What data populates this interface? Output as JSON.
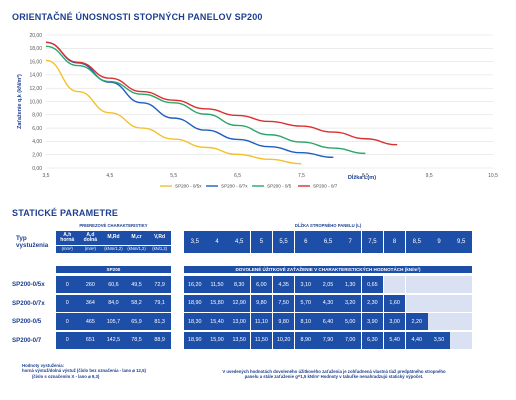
{
  "chart_title": "ORIENTAČNÉ ÚNOSNOSTI STOPNÝCH PANELOV SP200",
  "static_title": "STATICKÉ PARAMETRE",
  "chart_data": {
    "type": "line",
    "title": "ORIENTAČNÉ ÚNOSNOSTI STOPNÝCH PANELOV SP200",
    "xlabel": "Dĺžka L(m)",
    "ylabel": "Zaťaženie q,k (kN/m²)",
    "xlim": [
      3.5,
      10.5
    ],
    "ylim": [
      0,
      20
    ],
    "x_ticks": [
      "3,5",
      "4,5",
      "5,5",
      "6,5",
      "7,5",
      "8,5",
      "9,5",
      "10,5"
    ],
    "y_ticks": [
      "0,00",
      "2,00",
      "4,00",
      "6,00",
      "8,00",
      "10,00",
      "12,00",
      "14,00",
      "16,00",
      "18,00",
      "20,00"
    ],
    "grid": true,
    "legend_position": "bottom",
    "series": [
      {
        "name": "SP200 - 0/5x",
        "color": "#f2c12e",
        "x": [
          3.5,
          4,
          4.5,
          5,
          5.5,
          6,
          6.5,
          7,
          7.5
        ],
        "y": [
          16.2,
          11.5,
          8.3,
          6.0,
          4.35,
          3.1,
          2.05,
          1.3,
          0.65
        ]
      },
      {
        "name": "SP200 - 0/7x",
        "color": "#1f5fbf",
        "x": [
          3.5,
          4,
          4.5,
          5,
          5.5,
          6,
          6.5,
          7,
          7.5,
          8
        ],
        "y": [
          18.9,
          15.8,
          12.9,
          9.8,
          7.5,
          5.7,
          4.3,
          3.2,
          2.3,
          1.6
        ]
      },
      {
        "name": "SP200 - 0/5",
        "color": "#2ca56a",
        "x": [
          3.5,
          4,
          4.5,
          5,
          5.5,
          6,
          6.5,
          7,
          7.5,
          8,
          8.5
        ],
        "y": [
          18.3,
          15.4,
          13.0,
          11.1,
          9.8,
          8.1,
          6.4,
          5.0,
          3.9,
          3.0,
          2.2
        ]
      },
      {
        "name": "SP200 - 0/7",
        "color": "#d93030",
        "x": [
          3.5,
          4,
          4.5,
          5,
          5.5,
          6,
          6.5,
          7,
          7.5,
          8,
          8.5,
          9
        ],
        "y": [
          18.9,
          15.9,
          13.5,
          11.5,
          10.2,
          8.9,
          7.9,
          7.0,
          6.3,
          5.4,
          4.4,
          3.5
        ]
      }
    ]
  },
  "table": {
    "typ_label": "Typ vystuženia",
    "group_left": "PRIEREZOVÉ CHARAKTERISTIKY",
    "group_right": "DĹŽKA STROPNÉHO PANELU (L)",
    "cols": [
      {
        "head": "A,h horná",
        "unit": "(mm²)"
      },
      {
        "head": "A,d dolná",
        "unit": "(mm²)"
      },
      {
        "head": "M,Rd",
        "unit": "(kNm/1,2)"
      },
      {
        "head": "M,cr",
        "unit": "(kNm/1,2)"
      },
      {
        "head": "V,Rd",
        "unit": "(kN/1,2)"
      }
    ],
    "lengths": [
      "3,5",
      "4",
      "4,5",
      "5",
      "5,5",
      "6",
      "6,5",
      "7",
      "7,5",
      "8",
      "8,5",
      "9",
      "9,5"
    ],
    "bar_left": "SP200",
    "bar_right": "DOVOLENÉ ÚŽITKOVÉ ZAŤAŽENIE V CHARAKTERISTICKÝCH HODNOTÁCH (kN/m²)",
    "rows": [
      {
        "label": "SP200-0/5x",
        "params": [
          "0",
          "260",
          "60,6",
          "49,5",
          "72,9"
        ],
        "values": [
          "16,20",
          "11,50",
          "8,30",
          "6,00",
          "4,35",
          "3,10",
          "2,05",
          "1,30",
          "0,65",
          "",
          "",
          "",
          ""
        ]
      },
      {
        "label": "SP200-0/7x",
        "params": [
          "0",
          "364",
          "84,0",
          "58,2",
          "79,1"
        ],
        "values": [
          "18,90",
          "15,80",
          "12,90",
          "9,80",
          "7,50",
          "5,70",
          "4,30",
          "3,20",
          "2,30",
          "1,60",
          "",
          "",
          ""
        ]
      },
      {
        "label": "SP200-0/5",
        "params": [
          "0",
          "465",
          "105,7",
          "65,9",
          "81,3"
        ],
        "values": [
          "18,30",
          "15,40",
          "13,00",
          "11,10",
          "9,80",
          "8,10",
          "6,40",
          "5,00",
          "3,90",
          "3,00",
          "2,20",
          "",
          ""
        ]
      },
      {
        "label": "SP200-0/7",
        "params": [
          "0",
          "651",
          "142,5",
          "78,5",
          "88,9"
        ],
        "values": [
          "18,90",
          "15,90",
          "13,50",
          "11,50",
          "10,20",
          "8,90",
          "7,90",
          "7,00",
          "6,30",
          "5,40",
          "4,40",
          "3,50",
          ""
        ]
      }
    ]
  },
  "notes": {
    "left_title": "Hodnoty vystuženia:",
    "left_lines": [
      "horná výstuž/dolná výstuž (číslo bez označenia - lano ⌀ 12,5)",
      "(číslo s označením X - lano ⌀ 9,3)"
    ],
    "right_lines": [
      "V uvedených hodnotách dovoleného úžitkového zaťaženia je zohľadnená vlastná tiaž predpätného stropného",
      "panelu a stále zaťaženie g=1,5 kN/m² Hodnoty v tabuľke nenahradzujú statický výpočet."
    ]
  }
}
